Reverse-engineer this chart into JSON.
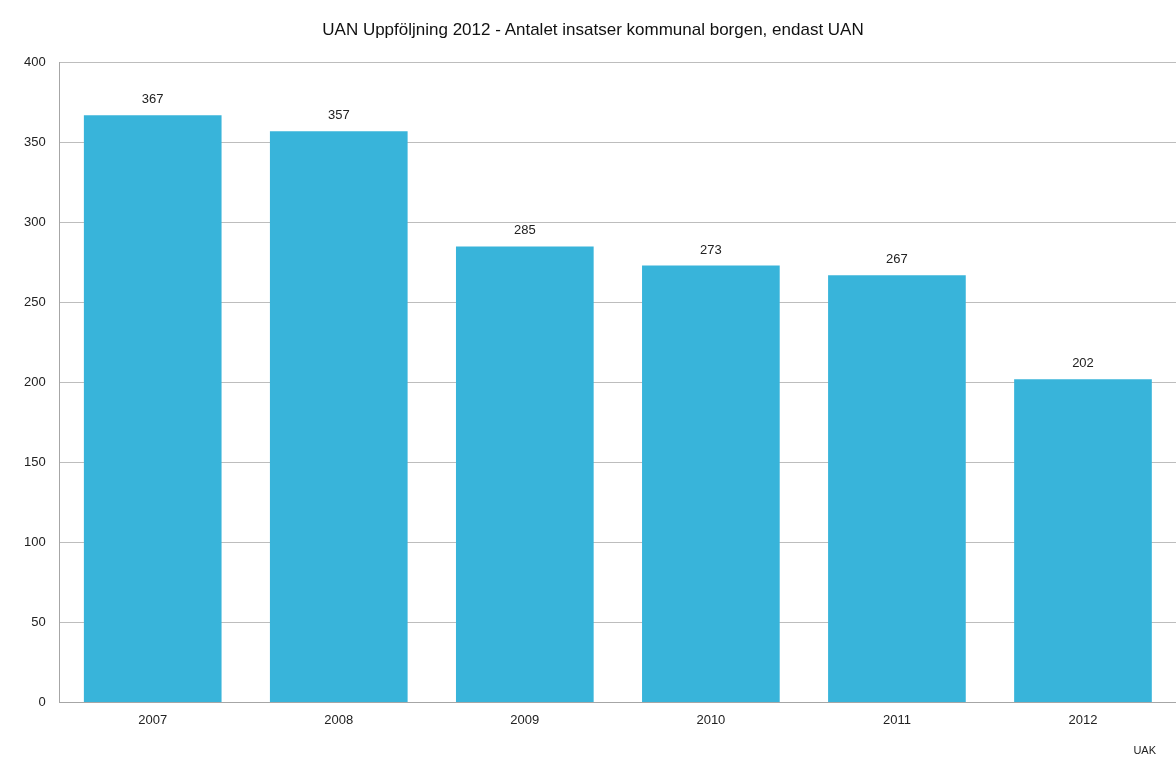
{
  "chart_data": {
    "type": "bar",
    "title": "UAN Uppföljning 2012 - Antalet insatser kommunal borgen, endast UAN",
    "categories": [
      "2007",
      "2008",
      "2009",
      "2010",
      "2011",
      "2012"
    ],
    "values": [
      367,
      357,
      285,
      273,
      267,
      202
    ],
    "color": "#38b4da",
    "ylim": [
      0,
      400
    ],
    "yticks": [
      0,
      50,
      100,
      150,
      200,
      250,
      300,
      350,
      400
    ],
    "grid": "y",
    "data_labels": true,
    "legend": false,
    "annotations": [
      "UAK"
    ]
  }
}
